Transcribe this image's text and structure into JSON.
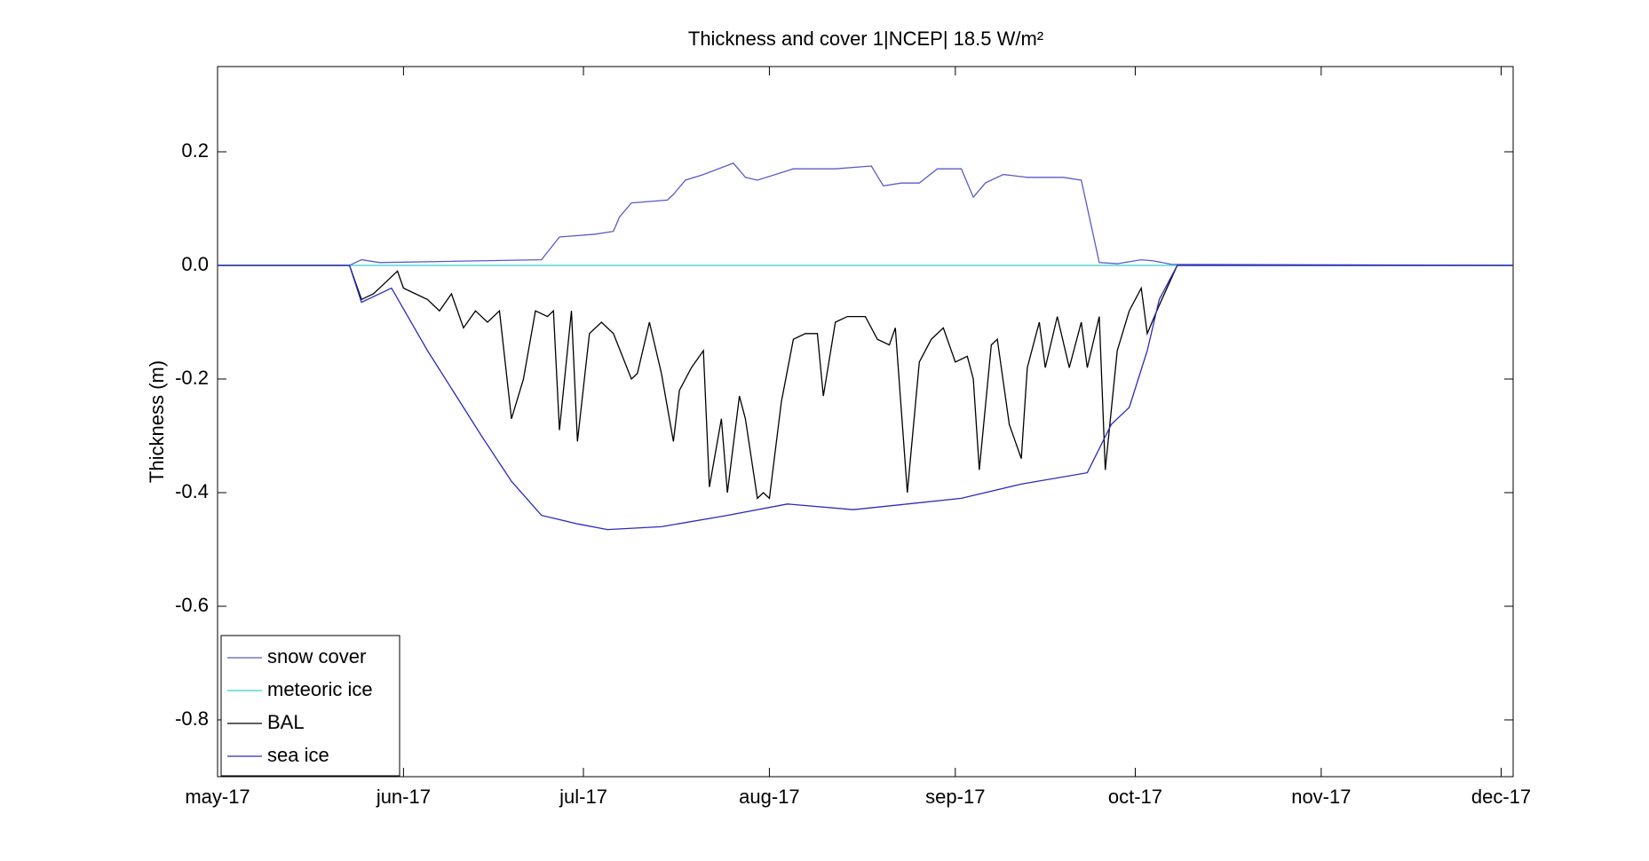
{
  "chart_data": {
    "type": "line",
    "title": "Thickness and cover 1|NCEP| 18.5 W/m²",
    "y_label": "Thickness (m)",
    "xlim": [
      0,
      216
    ],
    "xticks": [
      {
        "value": 0,
        "label": "may-17"
      },
      {
        "value": 31,
        "label": "jun-17"
      },
      {
        "value": 61,
        "label": "jul-17"
      },
      {
        "value": 92,
        "label": "aug-17"
      },
      {
        "value": 123,
        "label": "sep-17"
      },
      {
        "value": 153,
        "label": "oct-17"
      },
      {
        "value": 184,
        "label": "nov-17"
      },
      {
        "value": 214,
        "label": "dec-17"
      }
    ],
    "ylim": [
      -0.9,
      0.35
    ],
    "yticks": [
      0.2,
      {
        "value": 0,
        "label": "0.0"
      },
      -0.2,
      -0.4,
      -0.6,
      -0.8
    ],
    "legend": "lower-left",
    "series": [
      {
        "name": "snow cover",
        "color": "#5a5ac8",
        "x": [
          0,
          22,
          24,
          27,
          54,
          57,
          63,
          66,
          67,
          69,
          75,
          76,
          78,
          81,
          86,
          88,
          90,
          96,
          103,
          109,
          111,
          114,
          117,
          120,
          124,
          126,
          128,
          131,
          135,
          141,
          144,
          147,
          150,
          154,
          156,
          159,
          216
        ],
        "values": [
          0,
          0,
          0.01,
          0.005,
          0.01,
          0.05,
          0.055,
          0.06,
          0.085,
          0.11,
          0.115,
          0.125,
          0.15,
          0.16,
          0.18,
          0.155,
          0.15,
          0.17,
          0.17,
          0.175,
          0.14,
          0.145,
          0.145,
          0.17,
          0.17,
          0.12,
          0.145,
          0.16,
          0.155,
          0.155,
          0.15,
          0.005,
          0.003,
          0.01,
          0.008,
          0.002,
          0
        ]
      },
      {
        "name": "meteoric ice",
        "color": "#33d0d0",
        "x": [
          0,
          216
        ],
        "values": [
          0,
          0
        ]
      },
      {
        "name": "BAL",
        "color": "#000000",
        "x": [
          0,
          22,
          24,
          26,
          28,
          30,
          31,
          33,
          35,
          37,
          39,
          41,
          43,
          45,
          47,
          49,
          51,
          53,
          55,
          56,
          57,
          59,
          60,
          62,
          64,
          66,
          69,
          70,
          72,
          74,
          76,
          77,
          79,
          81,
          82,
          84,
          85,
          87,
          88,
          90,
          91,
          92,
          94,
          96,
          98,
          100,
          101,
          103,
          105,
          108,
          110,
          112,
          113,
          115,
          117,
          119,
          121,
          123,
          125,
          126,
          127,
          129,
          130,
          132,
          134,
          135,
          137,
          138,
          140,
          142,
          144,
          145,
          147,
          148,
          150,
          152,
          154,
          155,
          157,
          160,
          216
        ],
        "values": [
          0,
          0,
          -0.06,
          -0.05,
          -0.03,
          -0.01,
          -0.04,
          -0.05,
          -0.06,
          -0.08,
          -0.05,
          -0.11,
          -0.08,
          -0.1,
          -0.08,
          -0.27,
          -0.2,
          -0.08,
          -0.09,
          -0.08,
          -0.29,
          -0.08,
          -0.31,
          -0.12,
          -0.1,
          -0.12,
          -0.2,
          -0.19,
          -0.1,
          -0.19,
          -0.31,
          -0.22,
          -0.18,
          -0.15,
          -0.39,
          -0.27,
          -0.4,
          -0.23,
          -0.27,
          -0.41,
          -0.4,
          -0.41,
          -0.24,
          -0.13,
          -0.12,
          -0.12,
          -0.23,
          -0.1,
          -0.09,
          -0.09,
          -0.13,
          -0.14,
          -0.11,
          -0.4,
          -0.17,
          -0.13,
          -0.11,
          -0.17,
          -0.16,
          -0.2,
          -0.36,
          -0.14,
          -0.13,
          -0.28,
          -0.34,
          -0.18,
          -0.1,
          -0.18,
          -0.09,
          -0.18,
          -0.1,
          -0.18,
          -0.09,
          -0.36,
          -0.15,
          -0.08,
          -0.04,
          -0.12,
          -0.07,
          0,
          0
        ]
      },
      {
        "name": "sea ice",
        "color": "#2a2ac0",
        "x": [
          0,
          22,
          24,
          29,
          35,
          44,
          49,
          54,
          60,
          65,
          74,
          85,
          95,
          106,
          115,
          124,
          134,
          145,
          149,
          152,
          155,
          157,
          160,
          216
        ],
        "values": [
          0,
          0,
          -0.065,
          -0.04,
          -0.15,
          -0.3,
          -0.38,
          -0.44,
          -0.455,
          -0.465,
          -0.46,
          -0.44,
          -0.42,
          -0.43,
          -0.42,
          -0.41,
          -0.385,
          -0.365,
          -0.28,
          -0.25,
          -0.15,
          -0.06,
          0,
          0
        ]
      }
    ]
  }
}
